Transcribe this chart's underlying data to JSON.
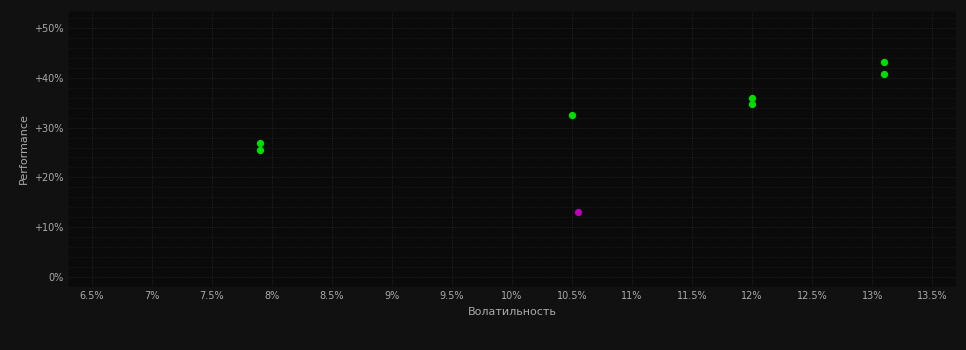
{
  "background_color": "#111111",
  "plot_background": "#0a0a0a",
  "grid_color": "#2a2a2a",
  "text_color": "#aaaaaa",
  "xlabel": "Волатильность",
  "ylabel": "Performance",
  "xlim": [
    0.063,
    0.137
  ],
  "ylim": [
    -0.02,
    0.535
  ],
  "xticks": [
    0.065,
    0.07,
    0.075,
    0.08,
    0.085,
    0.09,
    0.095,
    0.1,
    0.105,
    0.11,
    0.115,
    0.12,
    0.125,
    0.13,
    0.135
  ],
  "yticks": [
    0.0,
    0.1,
    0.2,
    0.3,
    0.4,
    0.5
  ],
  "ytick_labels": [
    "0%",
    "+10%",
    "+20%",
    "+30%",
    "+40%",
    "+50%"
  ],
  "xtick_labels": [
    "6.5%",
    "7%",
    "7.5%",
    "8%",
    "8.5%",
    "9%",
    "9.5%",
    "10%",
    "10.5%",
    "11%",
    "11.5%",
    "12%",
    "12.5%",
    "13%",
    "13.5%"
  ],
  "minor_yticks": [
    0.0,
    0.02,
    0.04,
    0.06,
    0.08,
    0.1,
    0.12,
    0.14,
    0.16,
    0.18,
    0.2,
    0.22,
    0.24,
    0.26,
    0.28,
    0.3,
    0.32,
    0.34,
    0.36,
    0.38,
    0.4,
    0.42,
    0.44,
    0.46,
    0.48,
    0.5,
    0.52
  ],
  "green_points": [
    [
      0.079,
      0.27
    ],
    [
      0.079,
      0.254
    ],
    [
      0.105,
      0.325
    ],
    [
      0.12,
      0.36
    ],
    [
      0.12,
      0.348
    ],
    [
      0.131,
      0.432
    ],
    [
      0.131,
      0.408
    ]
  ],
  "purple_points": [
    [
      0.1055,
      0.13
    ]
  ],
  "green_color": "#00dd00",
  "purple_color": "#bb00bb",
  "point_size": 18,
  "figsize": [
    9.66,
    3.5
  ],
  "dpi": 100
}
